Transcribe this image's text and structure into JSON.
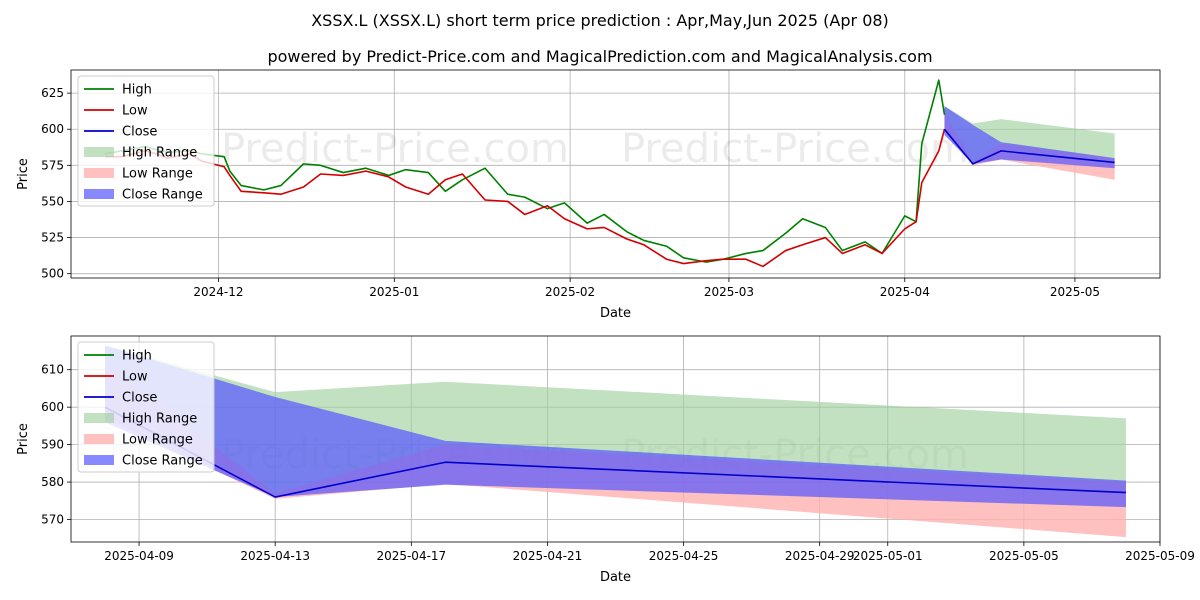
{
  "title_line1": "XSSX.L (XSSX.L) short term price prediction : Apr,May,Jun 2025 (Apr 08)",
  "title_line2": "powered by Predict-Price.com and MagicalPrediction.com and MagicalAnalysis.com",
  "watermark": "Predict-Price.com",
  "colors": {
    "high": "#008000",
    "low": "#d40000",
    "close": "#0000cc",
    "high_range": "#9fd19f",
    "low_range": "#ffb0b0",
    "close_range": "#5555ff",
    "grid": "#b0b0b0"
  },
  "chart_data": [
    {
      "type": "line",
      "xlabel": "Date",
      "ylabel": "Price",
      "xlim": [
        "2024-11-05",
        "2025-05-16"
      ],
      "ylim": [
        497,
        641
      ],
      "x_ticks": [
        "2024-12-01",
        "2025-01-01",
        "2025-02-01",
        "2025-03-01",
        "2025-04-01",
        "2025-05-01"
      ],
      "x_tick_labels": [
        "2024-12",
        "2025-01",
        "2025-02",
        "2025-03",
        "2025-04",
        "2025-05"
      ],
      "y_ticks": [
        500,
        525,
        550,
        575,
        600,
        625
      ],
      "grid": true,
      "legend": {
        "position": "top-left",
        "entries": [
          "High",
          "Low",
          "Close",
          "High Range",
          "Low Range",
          "Close Range"
        ]
      },
      "series": [
        {
          "name": "High",
          "x": [
            "2024-11-11",
            "2024-11-14",
            "2024-11-18",
            "2024-11-20",
            "2024-11-22",
            "2024-11-26",
            "2024-11-28",
            "2024-12-02",
            "2024-12-03",
            "2024-12-05",
            "2024-12-09",
            "2024-12-12",
            "2024-12-16",
            "2024-12-19",
            "2024-12-23",
            "2024-12-27",
            "2024-12-31",
            "2025-01-03",
            "2025-01-07",
            "2025-01-10",
            "2025-01-13",
            "2025-01-17",
            "2025-01-21",
            "2025-01-24",
            "2025-01-28",
            "2025-01-31",
            "2025-02-04",
            "2025-02-07",
            "2025-02-11",
            "2025-02-14",
            "2025-02-18",
            "2025-02-21",
            "2025-02-25",
            "2025-02-28",
            "2025-03-04",
            "2025-03-07",
            "2025-03-11",
            "2025-03-14",
            "2025-03-18",
            "2025-03-21",
            "2025-03-25",
            "2025-03-28",
            "2025-04-01",
            "2025-04-03",
            "2025-04-04",
            "2025-04-07",
            "2025-04-08"
          ],
          "values": [
            583,
            585,
            588,
            586,
            584,
            585,
            583,
            581,
            571,
            561,
            558,
            561,
            576,
            575,
            570,
            573,
            568,
            572,
            570,
            557,
            565,
            573,
            555,
            553,
            545,
            549,
            535,
            541,
            529,
            523,
            519,
            511,
            508,
            510,
            514,
            516,
            528,
            538,
            532,
            516,
            522,
            514,
            540,
            536,
            590,
            634,
            610
          ]
        },
        {
          "name": "Low",
          "x": [
            "2024-11-11",
            "2024-11-14",
            "2024-11-18",
            "2024-11-20",
            "2024-11-22",
            "2024-11-26",
            "2024-11-28",
            "2024-12-02",
            "2024-12-03",
            "2024-12-05",
            "2024-12-09",
            "2024-12-12",
            "2024-12-16",
            "2024-12-19",
            "2024-12-23",
            "2024-12-27",
            "2024-12-31",
            "2025-01-03",
            "2025-01-07",
            "2025-01-10",
            "2025-01-13",
            "2025-01-17",
            "2025-01-21",
            "2025-01-24",
            "2025-01-28",
            "2025-01-31",
            "2025-02-04",
            "2025-02-07",
            "2025-02-11",
            "2025-02-14",
            "2025-02-18",
            "2025-02-21",
            "2025-02-25",
            "2025-02-28",
            "2025-03-04",
            "2025-03-07",
            "2025-03-11",
            "2025-03-14",
            "2025-03-18",
            "2025-03-21",
            "2025-03-25",
            "2025-03-28",
            "2025-04-01",
            "2025-04-03",
            "2025-04-04",
            "2025-04-07",
            "2025-04-08"
          ],
          "values": [
            581,
            581,
            585,
            583,
            580,
            583,
            578,
            574,
            568,
            557,
            556,
            555,
            560,
            569,
            568,
            571,
            567,
            560,
            555,
            565,
            569,
            551,
            550,
            541,
            547,
            538,
            531,
            532,
            524,
            520,
            510,
            507,
            509,
            510,
            510,
            505,
            516,
            520,
            525,
            514,
            520,
            514,
            531,
            536,
            563,
            585,
            600
          ]
        },
        {
          "name": "Close",
          "x": [
            "2025-04-08",
            "2025-04-13",
            "2025-04-18",
            "2025-05-08"
          ],
          "values": [
            600,
            576,
            585,
            577
          ]
        },
        {
          "name": "High Range",
          "x": [
            "2025-04-08",
            "2025-04-13",
            "2025-04-18",
            "2025-05-08"
          ],
          "lower": [
            600,
            576,
            585,
            577
          ],
          "upper": [
            616,
            604,
            607,
            597
          ]
        },
        {
          "name": "Low Range",
          "x": [
            "2025-04-08",
            "2025-04-13",
            "2025-04-18",
            "2025-05-08"
          ],
          "lower": [
            598,
            575,
            579,
            565
          ],
          "upper": [
            612,
            577,
            590,
            580
          ]
        },
        {
          "name": "Close Range",
          "x": [
            "2025-04-08",
            "2025-04-13",
            "2025-04-18",
            "2025-05-08"
          ],
          "lower": [
            596,
            576,
            579,
            573
          ],
          "upper": [
            616,
            603,
            591,
            580
          ]
        }
      ]
    },
    {
      "type": "line",
      "xlabel": "Date",
      "ylabel": "Price",
      "xlim": [
        "2025-04-07",
        "2025-05-09"
      ],
      "ylim": [
        564,
        619
      ],
      "x_ticks": [
        "2025-04-09",
        "2025-04-13",
        "2025-04-17",
        "2025-04-21",
        "2025-04-25",
        "2025-04-29",
        "2025-05-01",
        "2025-05-05",
        "2025-05-09"
      ],
      "x_tick_labels": [
        "2025-04-09",
        "2025-04-13",
        "2025-04-17",
        "2025-04-21",
        "2025-04-25",
        "2025-04-29",
        "2025-05-01",
        "2025-05-05",
        "2025-05-09"
      ],
      "y_ticks": [
        570,
        580,
        590,
        600,
        610
      ],
      "grid": true,
      "legend": {
        "position": "top-left",
        "entries": [
          "High",
          "Low",
          "Close",
          "High Range",
          "Low Range",
          "Close Range"
        ]
      },
      "series": [
        {
          "name": "Close",
          "x": [
            "2025-04-08",
            "2025-04-13",
            "2025-04-18",
            "2025-05-08"
          ],
          "values": [
            600,
            576,
            585.3,
            577.2
          ]
        },
        {
          "name": "High Range",
          "x": [
            "2025-04-08",
            "2025-04-13",
            "2025-04-18",
            "2025-05-08"
          ],
          "lower": [
            600,
            576,
            585.3,
            577.2
          ],
          "upper": [
            616.5,
            604,
            606.8,
            597
          ]
        },
        {
          "name": "Low Range",
          "x": [
            "2025-04-08",
            "2025-04-13",
            "2025-04-18",
            "2025-05-08"
          ],
          "lower": [
            597,
            575.5,
            579.5,
            565.3
          ],
          "upper": [
            612,
            577,
            590,
            580
          ]
        },
        {
          "name": "Close Range",
          "x": [
            "2025-04-08",
            "2025-04-13",
            "2025-04-18",
            "2025-05-08"
          ],
          "lower": [
            596,
            576,
            579.3,
            573.3
          ],
          "upper": [
            616.5,
            602.7,
            591,
            580.4
          ]
        }
      ]
    }
  ]
}
